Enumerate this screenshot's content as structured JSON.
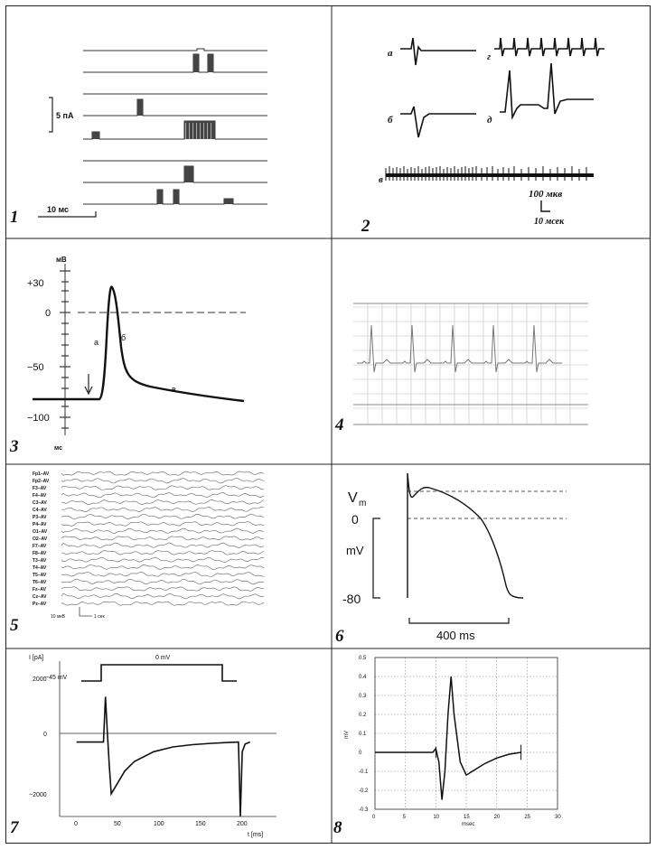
{
  "panels": {
    "p1": {
      "number": "1",
      "scale_current": "5 пА",
      "scale_time": "10 мс"
    },
    "p2": {
      "number": "2",
      "labels": [
        "а",
        "г",
        "б",
        "д",
        "в"
      ],
      "scale_voltage": "100 мкв",
      "scale_time": "10 мсек"
    },
    "p3": {
      "number": "3",
      "unit_top": "мВ",
      "unit_bottom": "мс",
      "ticks": [
        "+30",
        "0",
        "−50",
        "−100"
      ],
      "phase_labels": [
        "а",
        "б",
        "в"
      ]
    },
    "p4": {
      "number": "4"
    },
    "p5": {
      "number": "5",
      "channels": [
        "Fp1–AV",
        "Fp2–AV",
        "F3–AV",
        "F4–AV",
        "C3–AV",
        "C4–AV",
        "P3–AV",
        "P4–AV",
        "O1–AV",
        "O2–AV",
        "F7–AV",
        "F8–AV",
        "T3–AV",
        "T4–AV",
        "T5–AV",
        "T6–AV",
        "Fz–AV",
        "Cz–AV",
        "Pz–AV"
      ],
      "scale_voltage": "10 мкВ",
      "scale_time": "1 сек"
    },
    "p6": {
      "number": "6",
      "ylabel_top": "V",
      "ylabel_sub": "m",
      "tick_zero": "0",
      "ylabel_unit": "mV",
      "tick_bottom": "-80",
      "scale_time": "400 ms"
    },
    "p7": {
      "number": "7",
      "ylabel": "I [pA]",
      "protocol_hold": "−45 mV",
      "protocol_step": "0 mV",
      "yticks": [
        "2000",
        "0",
        "−2000"
      ],
      "xticks": [
        "0",
        "50",
        "100",
        "150",
        "200"
      ],
      "xlabel": "t [ms]"
    },
    "p8": {
      "number": "8",
      "ylabel": "mV",
      "xlabel": "msec",
      "yticks": [
        "0.5",
        "0.4",
        "0.3",
        "0.2",
        "0.1",
        "0",
        "-0.1",
        "-0.2",
        "-0.3"
      ],
      "xticks": [
        "0",
        "5",
        "10",
        "15",
        "20",
        "25",
        "30"
      ]
    }
  },
  "chart_data": [
    {
      "type": "line",
      "panel": "7",
      "x": [
        0,
        28,
        30,
        32,
        34,
        36,
        40,
        50,
        60,
        80,
        100,
        120,
        140,
        160,
        168,
        170,
        172,
        175,
        180
      ],
      "values": [
        0,
        0,
        1400,
        300,
        -700,
        -1600,
        -1400,
        -900,
        -600,
        -300,
        -150,
        -80,
        -40,
        -10,
        0,
        -2300,
        -300,
        -60,
        0
      ],
      "xlim": [
        -10,
        215
      ],
      "ylim": [
        -2300,
        2500
      ]
    },
    {
      "type": "line",
      "panel": "8",
      "x": [
        0,
        5,
        9.5,
        10,
        10.5,
        11,
        11.5,
        12,
        12.5,
        13,
        14,
        15,
        16,
        18,
        20,
        22,
        24
      ],
      "values": [
        0,
        0,
        0,
        0.02,
        -0.05,
        -0.25,
        -0.1,
        0.2,
        0.4,
        0.2,
        -0.05,
        -0.12,
        -0.1,
        -0.06,
        -0.03,
        -0.01,
        0
      ],
      "xlim": [
        0,
        30
      ],
      "ylim": [
        -0.3,
        0.5
      ]
    }
  ]
}
